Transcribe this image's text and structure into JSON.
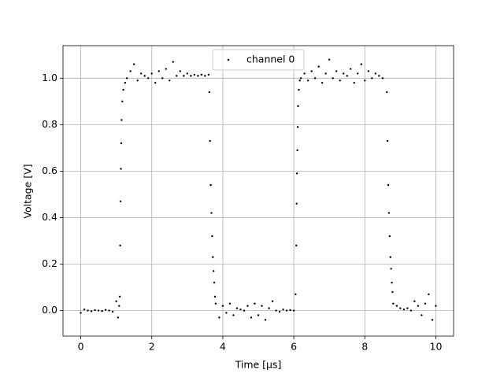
{
  "chart_data": {
    "type": "scatter",
    "xlabel": "Time [μs]",
    "ylabel": "Voltage [V]",
    "xlim": [
      -0.5,
      10.5
    ],
    "ylim": [
      -0.11,
      1.14
    ],
    "xticks": [
      0,
      2,
      4,
      6,
      8,
      10
    ],
    "yticks": [
      {
        "value": 0,
        "label": "0.0"
      },
      0.2,
      0.4,
      0.6,
      0.8,
      {
        "value": 1,
        "label": "1.0"
      }
    ],
    "grid": true,
    "legend": "upper center",
    "series": [
      {
        "name": "channel 0",
        "color": "#000000",
        "x": [
          0,
          0.1,
          0.2,
          0.3,
          0.4,
          0.5,
          0.6,
          0.7,
          0.8,
          0.9,
          1.0,
          1.05,
          1.08,
          1.1,
          1.11,
          1.12,
          1.13,
          1.14,
          1.15,
          1.17,
          1.2,
          1.25,
          1.3,
          1.4,
          1.5,
          1.6,
          1.7,
          1.8,
          1.9,
          2.0,
          2.1,
          2.2,
          2.3,
          2.4,
          2.5,
          2.6,
          2.7,
          2.8,
          2.9,
          3.0,
          3.1,
          3.2,
          3.3,
          3.4,
          3.5,
          3.6,
          3.62,
          3.64,
          3.66,
          3.68,
          3.7,
          3.72,
          3.74,
          3.76,
          3.78,
          3.8,
          3.9,
          4.0,
          4.1,
          4.2,
          4.3,
          4.4,
          4.5,
          4.6,
          4.7,
          4.8,
          4.9,
          5.0,
          5.1,
          5.2,
          5.3,
          5.4,
          5.5,
          5.6,
          5.7,
          5.8,
          5.9,
          6.0,
          6.05,
          6.07,
          6.08,
          6.09,
          6.1,
          6.11,
          6.12,
          6.14,
          6.17,
          6.2,
          6.3,
          6.4,
          6.5,
          6.6,
          6.7,
          6.8,
          6.9,
          7.0,
          7.1,
          7.2,
          7.3,
          7.4,
          7.5,
          7.6,
          7.7,
          7.8,
          7.9,
          8.0,
          8.1,
          8.2,
          8.3,
          8.4,
          8.5,
          8.62,
          8.64,
          8.66,
          8.68,
          8.7,
          8.72,
          8.74,
          8.76,
          8.78,
          8.8,
          8.9,
          9.0,
          9.1,
          9.2,
          9.3,
          9.4,
          9.5,
          9.6,
          9.7,
          9.8,
          9.9,
          10.0
        ],
        "values": [
          -0.01,
          0.005,
          0,
          -0.003,
          0.002,
          0,
          -0.002,
          0.003,
          0,
          -0.005,
          0.04,
          -0.03,
          0.02,
          0.06,
          0.28,
          0.47,
          0.61,
          0.72,
          0.82,
          0.9,
          0.95,
          0.98,
          1.0,
          1.03,
          1.06,
          0.99,
          1.02,
          1.01,
          1.0,
          1.02,
          0.98,
          1.03,
          1.0,
          1.04,
          0.99,
          1.07,
          1.01,
          1.03,
          1.01,
          1.02,
          1.01,
          1.015,
          1.01,
          1.015,
          1.01,
          1.015,
          0.94,
          0.73,
          0.54,
          0.42,
          0.32,
          0.23,
          0.17,
          0.12,
          0.06,
          0.03,
          -0.03,
          0.02,
          -0.01,
          0.03,
          -0.02,
          0.01,
          0.005,
          0,
          0.02,
          -0.03,
          0.03,
          -0.02,
          0.02,
          -0.04,
          0.01,
          0.04,
          0,
          -0.005,
          0.005,
          0,
          0.002,
          0,
          0.07,
          0.28,
          0.46,
          0.59,
          0.69,
          0.79,
          0.88,
          0.95,
          0.99,
          1.0,
          1.02,
          0.99,
          1.03,
          1.0,
          1.05,
          0.98,
          1.02,
          1.08,
          1.0,
          1.03,
          0.99,
          1.02,
          1.01,
          1.04,
          0.98,
          1.02,
          1.06,
          0.99,
          1.03,
          1.0,
          1.02,
          1.01,
          1.0,
          0.94,
          0.73,
          0.54,
          0.42,
          0.32,
          0.23,
          0.18,
          0.12,
          0.08,
          0.03,
          0.02,
          0.01,
          0.005,
          0.01,
          0,
          0.04,
          0.02,
          -0.02,
          0.03,
          0.07,
          -0.04,
          0.02
        ]
      }
    ]
  }
}
